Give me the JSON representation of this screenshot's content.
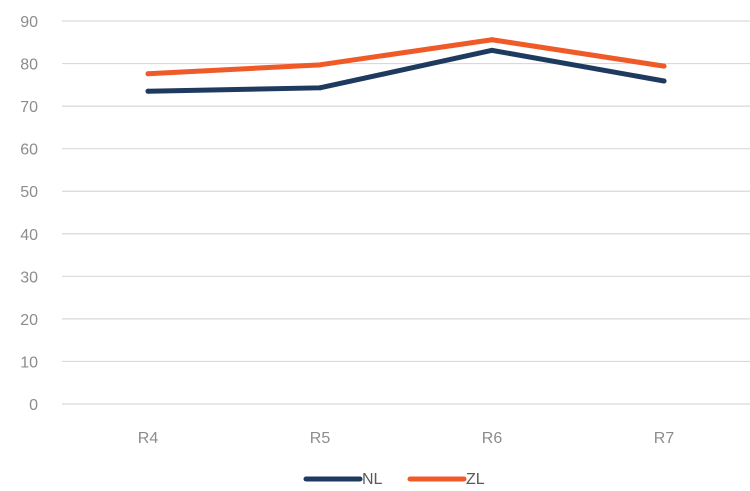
{
  "chart_data": {
    "type": "line",
    "title": "",
    "xlabel": "",
    "ylabel": "",
    "categories": [
      "R4",
      "R5",
      "R6",
      "R7"
    ],
    "ylim": [
      0,
      90
    ],
    "yticks": [
      0,
      10,
      20,
      30,
      40,
      50,
      60,
      70,
      80,
      90
    ],
    "grid": true,
    "legend_position": "bottom",
    "series": [
      {
        "name": "NL",
        "color": "#1f3a5f",
        "values": [
          73.5,
          74.3,
          83.1,
          75.9
        ]
      },
      {
        "name": "ZL",
        "color": "#f05a28",
        "values": [
          77.6,
          79.7,
          85.6,
          79.4
        ]
      }
    ]
  }
}
